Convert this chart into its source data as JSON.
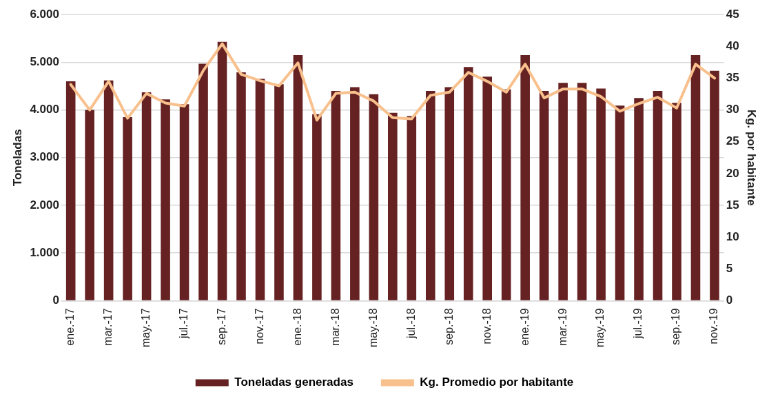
{
  "chart_data": {
    "type": "bar",
    "ylabel": "Toneladas",
    "y2label": "Kg. por habitante",
    "categories": [
      "ene.-17",
      null,
      "mar.-17",
      null,
      "may.-17",
      null,
      "jul.-17",
      null,
      "sep.-17",
      null,
      "nov.-17",
      null,
      "ene.-18",
      null,
      "mar.-18",
      null,
      "may.-18",
      null,
      "jul.-18",
      null,
      "sep.-18",
      null,
      "nov.-18",
      null,
      "ene.-19",
      null,
      "mar.-19",
      null,
      "may.-19",
      null,
      "jul.-19",
      null,
      "sep.-19",
      null,
      "nov.-19"
    ],
    "series": [
      {
        "name": "Toneladas generadas",
        "color": "#662222",
        "values": [
          4600,
          4000,
          4620,
          3850,
          4370,
          4220,
          4120,
          4970,
          5430,
          4790,
          4650,
          4540,
          5150,
          3910,
          4400,
          4480,
          4330,
          3940,
          3870,
          4400,
          4480,
          4900,
          4700,
          4430,
          5150,
          4400,
          4570,
          4570,
          4450,
          4090,
          4250,
          4400,
          4150,
          5150,
          4820
        ]
      },
      {
        "name": "Kg. Promedio por habitante",
        "type": "line",
        "axis": "y2",
        "color": "#f8c08c",
        "values": [
          34.0,
          30.0,
          34.5,
          28.7,
          32.6,
          31.1,
          30.6,
          36.2,
          40.4,
          35.6,
          34.6,
          33.8,
          37.4,
          28.4,
          32.6,
          32.8,
          31.4,
          28.8,
          28.6,
          32.3,
          32.8,
          35.9,
          34.5,
          32.8,
          37.2,
          31.9,
          33.3,
          33.3,
          32.1,
          29.8,
          31.0,
          32.0,
          30.3,
          37.2,
          35.0
        ]
      }
    ],
    "ylim": [
      0,
      6000
    ],
    "yticks": [
      0,
      {
        "value": 1000,
        "label": "1.000"
      },
      {
        "value": 2000,
        "label": "2.000"
      },
      {
        "value": 3000,
        "label": "3.000"
      },
      {
        "value": 4000,
        "label": "4.000"
      },
      {
        "value": 5000,
        "label": "5.000"
      },
      {
        "value": 6000,
        "label": "6.000"
      }
    ],
    "y2lim": [
      0,
      45
    ],
    "y2ticks": [
      0,
      5,
      10,
      15,
      20,
      25,
      30,
      35,
      40,
      45
    ],
    "grid": "y",
    "legend": "bottom",
    "marker": "none",
    "line_style": "solid"
  }
}
